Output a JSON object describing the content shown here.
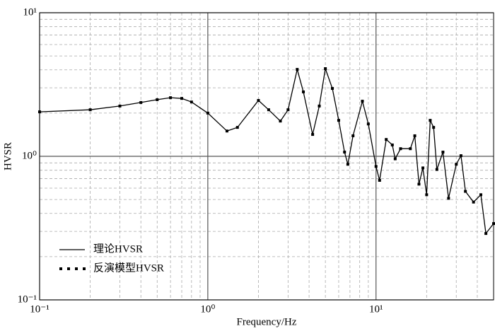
{
  "chart_data": {
    "type": "line",
    "xlabel": "Frequency/Hz",
    "ylabel": "HVSR",
    "x": [
      0.1,
      0.2,
      0.3,
      0.4,
      0.5,
      0.6,
      0.7,
      0.8,
      1.0,
      1.3,
      1.5,
      2.0,
      2.3,
      2.7,
      3.0,
      3.4,
      3.7,
      4.2,
      4.6,
      5.0,
      5.5,
      6.0,
      6.5,
      6.8,
      7.3,
      8.3,
      9.0,
      10,
      10.5,
      11.5,
      12.5,
      13,
      14,
      16,
      17,
      18,
      19,
      20,
      21,
      22,
      23,
      25,
      27,
      30,
      32,
      34,
      38,
      42,
      45,
      50
    ],
    "series": [
      {
        "name": "理论HVSR",
        "color": "#000000",
        "style": "solid",
        "values": [
          2.04,
          2.11,
          2.24,
          2.37,
          2.48,
          2.56,
          2.53,
          2.39,
          2.0,
          1.5,
          1.59,
          2.45,
          2.11,
          1.76,
          2.11,
          4.03,
          2.81,
          1.42,
          2.24,
          4.08,
          2.97,
          1.78,
          1.07,
          0.88,
          1.39,
          2.42,
          1.68,
          0.85,
          0.68,
          1.31,
          1.2,
          0.96,
          1.13,
          1.13,
          1.39,
          0.64,
          0.83,
          0.54,
          1.78,
          1.59,
          0.81,
          1.07,
          0.51,
          0.88,
          1.01,
          0.57,
          0.48,
          0.54,
          0.29,
          0.34
        ]
      },
      {
        "name": "反演模型HVSR",
        "color": "#000000",
        "style": "markers",
        "values": [
          2.04,
          2.11,
          2.24,
          2.37,
          2.48,
          2.56,
          2.53,
          2.39,
          2.0,
          1.5,
          1.59,
          2.45,
          2.11,
          1.76,
          2.11,
          4.03,
          2.81,
          1.42,
          2.24,
          4.08,
          2.97,
          1.78,
          1.07,
          0.88,
          1.39,
          2.42,
          1.68,
          0.85,
          0.68,
          1.31,
          1.2,
          0.96,
          1.13,
          1.13,
          1.39,
          0.64,
          0.83,
          0.54,
          1.78,
          1.59,
          0.81,
          1.07,
          0.51,
          0.88,
          1.01,
          0.57,
          0.48,
          0.54,
          0.29,
          0.34
        ]
      }
    ],
    "xlim": [
      0.1,
      50
    ],
    "ylim": [
      0.1,
      10
    ],
    "xticks": [
      {
        "value": 0.1,
        "label": "10⁻¹"
      },
      {
        "value": 1,
        "label": "10⁰"
      },
      {
        "value": 10,
        "label": "10¹"
      }
    ],
    "yticks": [
      {
        "value": 0.1,
        "label": "10⁻¹"
      },
      {
        "value": 1,
        "label": "10⁰"
      },
      {
        "value": 10,
        "label": "10¹"
      }
    ],
    "xscale": "log",
    "yscale": "log",
    "grid": true,
    "minor_grid": true,
    "legend": "lower left"
  }
}
